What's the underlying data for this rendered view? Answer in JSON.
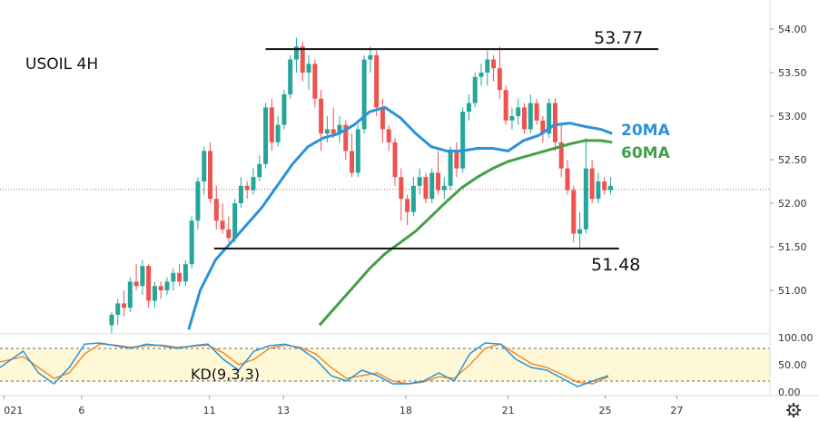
{
  "chart_data": [
    {
      "type": "candlestick",
      "title": "USOIL 4H",
      "ylim": [
        50.6,
        54.2
      ],
      "yticks": [
        "54.00",
        "53.50",
        "53.00",
        "52.50",
        "52.00",
        "51.50",
        "51.00"
      ],
      "ytick_values": [
        54.0,
        53.5,
        53.0,
        52.5,
        52.0,
        51.5,
        51.0
      ],
      "xlim": [
        0,
        100
      ],
      "xticks": [
        {
          "label": "021",
          "x": 0.5
        },
        {
          "label": "6",
          "x": 10.6
        },
        {
          "label": "11",
          "x": 27.2
        },
        {
          "label": "13",
          "x": 36.8
        },
        {
          "label": "18",
          "x": 52.7
        },
        {
          "label": "21",
          "x": 66.0
        },
        {
          "label": "25",
          "x": 78.6
        },
        {
          "label": "27",
          "x": 87.9
        }
      ],
      "candles": [
        [
          14.5,
          50.6,
          50.75,
          50.5,
          50.72
        ],
        [
          15.3,
          50.72,
          50.9,
          50.6,
          50.85
        ],
        [
          16.1,
          50.85,
          51.0,
          50.7,
          50.8
        ],
        [
          16.9,
          50.8,
          51.15,
          50.75,
          51.1
        ],
        [
          17.7,
          51.1,
          51.3,
          51.0,
          51.05
        ],
        [
          18.5,
          51.05,
          51.35,
          50.95,
          51.28
        ],
        [
          19.3,
          51.28,
          51.3,
          50.8,
          50.88
        ],
        [
          20.1,
          50.88,
          51.1,
          50.8,
          51.05
        ],
        [
          20.9,
          51.05,
          51.1,
          50.9,
          51.0
        ],
        [
          21.7,
          51.0,
          51.15,
          50.95,
          51.1
        ],
        [
          22.5,
          51.1,
          51.25,
          51.0,
          51.2
        ],
        [
          23.3,
          51.2,
          51.3,
          51.05,
          51.1
        ],
        [
          24.1,
          51.1,
          51.35,
          51.05,
          51.3
        ],
        [
          24.9,
          51.3,
          51.85,
          51.25,
          51.8
        ],
        [
          25.7,
          51.8,
          52.3,
          51.7,
          52.25
        ],
        [
          26.5,
          52.25,
          52.65,
          52.1,
          52.6
        ],
        [
          27.3,
          52.6,
          52.7,
          52.0,
          52.05
        ],
        [
          28.1,
          52.05,
          52.2,
          51.7,
          51.8
        ],
        [
          28.9,
          51.8,
          52.0,
          51.65,
          51.7
        ],
        [
          29.7,
          51.7,
          51.85,
          51.55,
          51.6
        ],
        [
          30.5,
          51.6,
          52.05,
          51.55,
          52.0
        ],
        [
          31.3,
          52.0,
          52.3,
          51.95,
          52.2
        ],
        [
          32.1,
          52.2,
          52.25,
          52.05,
          52.15
        ],
        [
          32.9,
          52.15,
          52.4,
          52.1,
          52.3
        ],
        [
          33.7,
          52.3,
          52.55,
          52.25,
          52.45
        ],
        [
          34.5,
          52.45,
          53.15,
          52.4,
          53.1
        ],
        [
          35.3,
          53.1,
          53.2,
          52.6,
          52.7
        ],
        [
          36.1,
          52.7,
          53.0,
          52.65,
          52.9
        ],
        [
          36.9,
          52.9,
          53.3,
          52.85,
          53.25
        ],
        [
          37.7,
          53.25,
          53.7,
          53.2,
          53.65
        ],
        [
          38.5,
          53.65,
          53.9,
          53.5,
          53.8
        ],
        [
          39.3,
          53.8,
          53.85,
          53.4,
          53.5
        ],
        [
          40.1,
          53.5,
          53.7,
          53.3,
          53.6
        ],
        [
          40.9,
          53.6,
          53.65,
          53.1,
          53.2
        ],
        [
          41.7,
          53.2,
          53.3,
          52.6,
          52.8
        ],
        [
          42.5,
          52.8,
          53.0,
          52.7,
          52.85
        ],
        [
          43.3,
          52.85,
          53.1,
          52.75,
          52.8
        ],
        [
          44.1,
          52.8,
          53.0,
          52.7,
          52.9
        ],
        [
          44.9,
          52.9,
          52.95,
          52.5,
          52.6
        ],
        [
          45.7,
          52.6,
          52.8,
          52.3,
          52.35
        ],
        [
          46.5,
          52.35,
          52.9,
          52.3,
          52.85
        ],
        [
          47.3,
          52.85,
          53.7,
          52.8,
          53.65
        ],
        [
          48.1,
          53.65,
          53.8,
          53.5,
          53.7
        ],
        [
          48.9,
          53.7,
          53.75,
          53.0,
          53.1
        ],
        [
          49.7,
          53.1,
          53.2,
          52.7,
          52.85
        ],
        [
          50.5,
          52.85,
          52.9,
          52.6,
          52.7
        ],
        [
          51.3,
          52.7,
          52.75,
          52.2,
          52.3
        ],
        [
          52.1,
          52.3,
          52.4,
          51.8,
          52.05
        ],
        [
          52.9,
          52.05,
          52.1,
          51.75,
          51.9
        ],
        [
          53.7,
          51.9,
          52.3,
          51.85,
          52.2
        ],
        [
          54.5,
          52.2,
          52.4,
          52.1,
          52.3
        ],
        [
          55.3,
          52.3,
          52.35,
          52.0,
          52.05
        ],
        [
          56.1,
          52.05,
          52.4,
          52.0,
          52.35
        ],
        [
          56.9,
          52.35,
          52.6,
          52.1,
          52.15
        ],
        [
          57.7,
          52.15,
          52.3,
          52.05,
          52.2
        ],
        [
          58.5,
          52.2,
          52.65,
          52.15,
          52.6
        ],
        [
          59.3,
          52.6,
          52.7,
          52.3,
          52.4
        ],
        [
          60.1,
          52.4,
          53.1,
          52.35,
          53.05
        ],
        [
          60.9,
          53.05,
          53.25,
          52.95,
          53.15
        ],
        [
          61.7,
          53.15,
          53.5,
          53.1,
          53.45
        ],
        [
          62.5,
          53.45,
          53.6,
          53.35,
          53.5
        ],
        [
          63.3,
          53.5,
          53.75,
          53.35,
          53.65
        ],
        [
          64.1,
          53.65,
          53.7,
          53.4,
          53.55
        ],
        [
          64.9,
          53.55,
          53.8,
          53.2,
          53.3
        ],
        [
          65.7,
          53.3,
          53.35,
          52.9,
          52.95
        ],
        [
          66.5,
          52.95,
          53.1,
          52.85,
          53.0
        ],
        [
          67.3,
          53.0,
          53.2,
          52.9,
          53.1
        ],
        [
          68.1,
          53.1,
          53.15,
          52.8,
          52.85
        ],
        [
          68.9,
          52.85,
          53.25,
          52.8,
          53.15
        ],
        [
          69.7,
          53.15,
          53.2,
          52.9,
          52.95
        ],
        [
          70.5,
          52.95,
          53.0,
          52.7,
          52.8
        ],
        [
          71.3,
          52.8,
          53.2,
          52.75,
          53.15
        ],
        [
          72.1,
          53.15,
          53.2,
          52.6,
          52.7
        ],
        [
          72.9,
          52.7,
          52.9,
          52.3,
          52.4
        ],
        [
          73.7,
          52.4,
          52.5,
          52.1,
          52.15
        ],
        [
          74.5,
          52.15,
          52.2,
          51.55,
          51.65
        ],
        [
          75.3,
          51.65,
          51.9,
          51.48,
          51.7
        ],
        [
          76.1,
          51.7,
          52.75,
          51.65,
          52.4
        ],
        [
          76.9,
          52.4,
          52.5,
          52.0,
          52.05
        ],
        [
          77.7,
          52.05,
          52.35,
          52.0,
          52.25
        ],
        [
          78.5,
          52.25,
          52.3,
          52.1,
          52.15
        ],
        [
          79.3,
          52.15,
          52.3,
          52.1,
          52.2
        ]
      ],
      "ma20": [
        [
          24.5,
          50.55
        ],
        [
          26,
          51.0
        ],
        [
          28,
          51.35
        ],
        [
          30,
          51.55
        ],
        [
          32,
          51.75
        ],
        [
          34,
          51.95
        ],
        [
          36,
          52.2
        ],
        [
          38,
          52.45
        ],
        [
          40,
          52.65
        ],
        [
          42,
          52.75
        ],
        [
          44,
          52.8
        ],
        [
          46,
          52.9
        ],
        [
          48,
          53.05
        ],
        [
          50,
          53.1
        ],
        [
          52,
          52.98
        ],
        [
          54,
          52.8
        ],
        [
          56,
          52.65
        ],
        [
          58,
          52.6
        ],
        [
          60,
          52.6
        ],
        [
          62,
          52.63
        ],
        [
          64,
          52.63
        ],
        [
          66,
          52.6
        ],
        [
          68,
          52.72
        ],
        [
          70,
          52.78
        ],
        [
          72,
          52.9
        ],
        [
          74,
          52.92
        ],
        [
          76,
          52.88
        ],
        [
          78,
          52.85
        ],
        [
          79.5,
          52.8
        ]
      ],
      "ma60": [
        [
          41.5,
          50.6
        ],
        [
          44,
          50.85
        ],
        [
          46,
          51.05
        ],
        [
          48,
          51.25
        ],
        [
          50,
          51.42
        ],
        [
          52,
          51.55
        ],
        [
          54,
          51.68
        ],
        [
          56,
          51.85
        ],
        [
          58,
          52.02
        ],
        [
          60,
          52.18
        ],
        [
          62,
          52.3
        ],
        [
          64,
          52.4
        ],
        [
          66,
          52.48
        ],
        [
          68,
          52.53
        ],
        [
          70,
          52.58
        ],
        [
          72,
          52.63
        ],
        [
          74,
          52.68
        ],
        [
          76,
          52.72
        ],
        [
          78,
          52.72
        ],
        [
          79.5,
          52.7
        ]
      ],
      "levels": [
        {
          "name": "resistance",
          "label": "53.77",
          "value": 53.77,
          "x_start": 34.5,
          "x_end": 85.5
        },
        {
          "name": "support",
          "label": "51.48",
          "value": 51.48,
          "x_start": 27.8,
          "x_end": 80.4
        }
      ],
      "ma_labels": [
        {
          "label": "20MA",
          "color": "#2a93d9"
        },
        {
          "label": "60MA",
          "color": "#43a047"
        }
      ],
      "current_price": 52.16
    },
    {
      "type": "line",
      "title": "KD(9,3,3)",
      "ylim": [
        0,
        100
      ],
      "yticks": [
        "100.00",
        "50.00",
        "0.00"
      ],
      "ytick_values": [
        100,
        50,
        0
      ],
      "band": [
        20,
        80
      ],
      "k": [
        [
          0,
          45
        ],
        [
          3,
          75
        ],
        [
          5,
          35
        ],
        [
          7,
          15
        ],
        [
          9,
          45
        ],
        [
          11,
          88
        ],
        [
          13,
          90
        ],
        [
          15,
          85
        ],
        [
          17,
          80
        ],
        [
          19,
          88
        ],
        [
          21,
          85
        ],
        [
          23,
          80
        ],
        [
          25,
          85
        ],
        [
          27,
          88
        ],
        [
          29,
          60
        ],
        [
          31,
          40
        ],
        [
          33,
          75
        ],
        [
          35,
          85
        ],
        [
          37,
          88
        ],
        [
          39,
          80
        ],
        [
          41,
          60
        ],
        [
          43,
          30
        ],
        [
          45,
          20
        ],
        [
          47,
          40
        ],
        [
          49,
          30
        ],
        [
          51,
          15
        ],
        [
          53,
          15
        ],
        [
          55,
          20
        ],
        [
          57,
          35
        ],
        [
          59,
          20
        ],
        [
          61,
          70
        ],
        [
          63,
          90
        ],
        [
          65,
          88
        ],
        [
          67,
          60
        ],
        [
          69,
          45
        ],
        [
          71,
          40
        ],
        [
          73,
          25
        ],
        [
          75,
          10
        ],
        [
          77,
          20
        ],
        [
          79,
          30
        ]
      ],
      "d": [
        [
          0,
          55
        ],
        [
          3,
          65
        ],
        [
          5,
          45
        ],
        [
          7,
          25
        ],
        [
          9,
          35
        ],
        [
          11,
          70
        ],
        [
          13,
          88
        ],
        [
          15,
          86
        ],
        [
          17,
          82
        ],
        [
          19,
          85
        ],
        [
          21,
          86
        ],
        [
          23,
          82
        ],
        [
          25,
          84
        ],
        [
          27,
          86
        ],
        [
          29,
          72
        ],
        [
          31,
          50
        ],
        [
          33,
          60
        ],
        [
          35,
          80
        ],
        [
          37,
          86
        ],
        [
          39,
          82
        ],
        [
          41,
          70
        ],
        [
          43,
          45
        ],
        [
          45,
          25
        ],
        [
          47,
          30
        ],
        [
          49,
          35
        ],
        [
          51,
          20
        ],
        [
          53,
          15
        ],
        [
          55,
          18
        ],
        [
          57,
          28
        ],
        [
          59,
          25
        ],
        [
          61,
          50
        ],
        [
          63,
          80
        ],
        [
          65,
          88
        ],
        [
          67,
          70
        ],
        [
          69,
          52
        ],
        [
          71,
          45
        ],
        [
          73,
          32
        ],
        [
          75,
          18
        ],
        [
          77,
          15
        ],
        [
          79,
          28
        ]
      ],
      "colors": {
        "k": "#2a93d9",
        "d": "#f08c2a",
        "band": "#fff8d6",
        "up": "#26a69a",
        "down": "#ef5350",
        "current_price": "#ef5350"
      }
    }
  ]
}
